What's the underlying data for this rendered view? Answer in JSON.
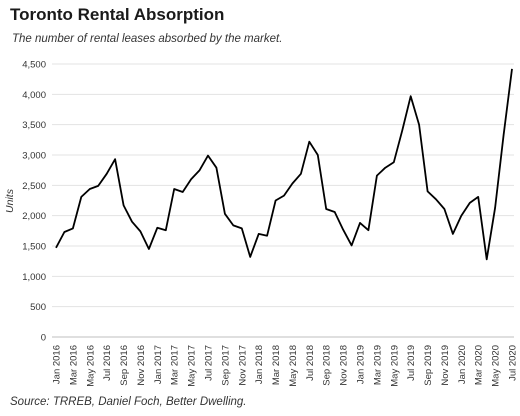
{
  "header": {
    "title": "Toronto Rental Absorption",
    "subtitle": "The number of rental leases absorbed by the market."
  },
  "footer": {
    "source": "Source: TRREB, Daniel Foch, Better Dwelling."
  },
  "chart_data": {
    "type": "line",
    "title": "Toronto Rental Absorption",
    "subtitle": "The number of rental leases absorbed by the market.",
    "xlabel": "",
    "ylabel": "Units",
    "ylim": [
      0,
      4500
    ],
    "yticks": [
      0,
      500,
      1000,
      1500,
      2000,
      2500,
      3000,
      3500,
      4000,
      4500
    ],
    "ytick_labels": [
      "0",
      "500",
      "1,000",
      "1,500",
      "2,000",
      "2,500",
      "3,000",
      "3,500",
      "4,000",
      "4,500"
    ],
    "grid": true,
    "legend": "none",
    "x": [
      "Jan 2016",
      "Feb 2016",
      "Mar 2016",
      "Apr 2016",
      "May 2016",
      "Jun 2016",
      "Jul 2016",
      "Aug 2016",
      "Sep 2016",
      "Oct 2016",
      "Nov 2016",
      "Dec 2016",
      "Jan 2017",
      "Feb 2017",
      "Mar 2017",
      "Apr 2017",
      "May 2017",
      "Jun 2017",
      "Jul 2017",
      "Aug 2017",
      "Sep 2017",
      "Oct 2017",
      "Nov 2017",
      "Dec 2017",
      "Jan 2018",
      "Feb 2018",
      "Mar 2018",
      "Apr 2018",
      "May 2018",
      "Jun 2018",
      "Jul 2018",
      "Aug 2018",
      "Sep 2018",
      "Oct 2018",
      "Nov 2018",
      "Dec 2018",
      "Jan 2019",
      "Feb 2019",
      "Mar 2019",
      "Apr 2019",
      "May 2019",
      "Jun 2019",
      "Jul 2019",
      "Aug 2019",
      "Sep 2019",
      "Oct 2019",
      "Nov 2019",
      "Dec 2019",
      "Jan 2020",
      "Feb 2020",
      "Mar 2020",
      "Apr 2020",
      "May 2020",
      "Jun 2020",
      "Jul 2020"
    ],
    "xtick_labels": [
      "Jan 2016",
      "Mar 2016",
      "May 2016",
      "Jul 2016",
      "Sep 2016",
      "Nov 2016",
      "Jan 2017",
      "Mar 2017",
      "May 2017",
      "Jul 2017",
      "Sep 2017",
      "Nov 2017",
      "Jan 2018",
      "Mar 2018",
      "May 2018",
      "Jul 2018",
      "Sep 2018",
      "Nov 2018",
      "Jan 2019",
      "Mar 2019",
      "May 2019",
      "Jul 2019",
      "Sep 2019",
      "Nov 2019",
      "Jan 2020",
      "Mar 2020",
      "May 2020",
      "Jul 2020"
    ],
    "series": [
      {
        "color": "#000000",
        "values": [
          1470,
          1730,
          1790,
          2310,
          2440,
          2490,
          2690,
          2930,
          2170,
          1900,
          1740,
          1450,
          1800,
          1760,
          2440,
          2390,
          2600,
          2750,
          2990,
          2790,
          2030,
          1840,
          1790,
          1320,
          1700,
          1670,
          2250,
          2330,
          2530,
          2690,
          3220,
          3000,
          2110,
          2060,
          1770,
          1510,
          1880,
          1760,
          2660,
          2790,
          2880,
          3400,
          3970,
          3500,
          2400,
          2270,
          2110,
          1700,
          2000,
          2210,
          2310,
          1280,
          2130,
          3330,
          4420
        ]
      }
    ]
  }
}
